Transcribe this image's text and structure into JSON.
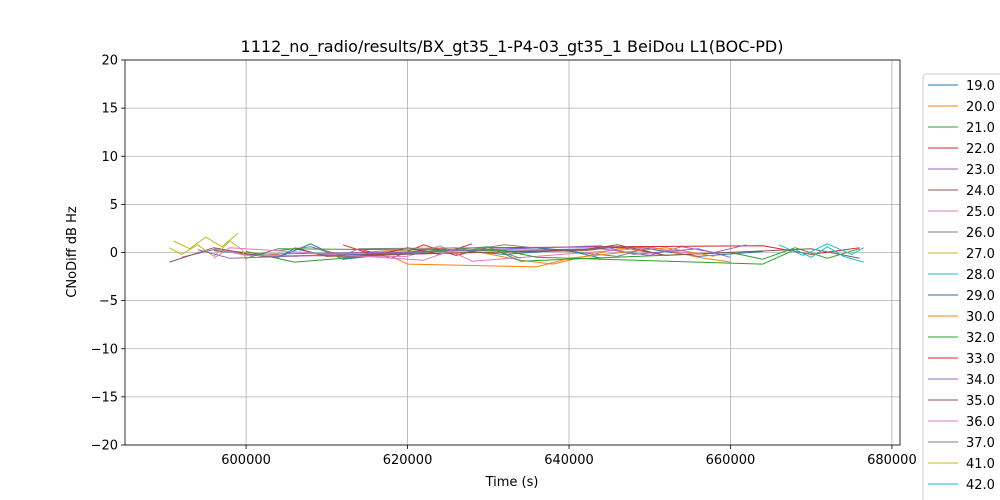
{
  "chart_data": {
    "type": "line",
    "title": "1112_no_radio/results/BX_gt35_1-P4-03_gt35_1 BeiDou L1(BOC-PD)",
    "xlabel": "Time (s)",
    "ylabel": "CNoDiff dB Hz",
    "xlim": [
      585000,
      681000
    ],
    "ylim": [
      -20,
      20
    ],
    "x_ticks": [
      600000,
      620000,
      640000,
      660000,
      680000
    ],
    "x_tick_labels": [
      "600000",
      "620000",
      "640000",
      "660000",
      "680000"
    ],
    "y_ticks": [
      20,
      15,
      10,
      5,
      0,
      -5,
      -10,
      -15,
      -20
    ],
    "y_tick_labels": [
      "20",
      "15",
      "10",
      "5",
      "0",
      "−5",
      "−10",
      "−15",
      "−20"
    ],
    "grid": true,
    "legend_placement": "right, outside plot",
    "series": [
      {
        "name": "19.0",
        "color": "#1f77b4",
        "x": [
          596000,
          604000,
          608000,
          612000,
          624000,
          632000,
          640000,
          648000,
          656000,
          664000
        ],
        "y": [
          0.2,
          -0.5,
          0.9,
          -0.7,
          0.4,
          -0.2,
          0.3,
          0.6,
          -0.4,
          0.1
        ]
      },
      {
        "name": "20.0",
        "color": "#ff7f0e",
        "x": [
          596000,
          606000,
          616000,
          626000,
          634000,
          638000,
          646000,
          650000,
          656000,
          660000
        ],
        "y": [
          0.3,
          -0.4,
          0.1,
          0.5,
          -0.8,
          -1.2,
          0.4,
          0.6,
          -0.5,
          -1.0
        ]
      },
      {
        "name": "21.0",
        "color": "#2ca02c",
        "x": [
          600000,
          606000,
          630000,
          634000,
          660000,
          664000,
          668000,
          672000,
          676000
        ],
        "y": [
          0.1,
          -1.0,
          0.6,
          -0.9,
          0.0,
          -0.7,
          0.5,
          -0.6,
          0.4
        ]
      },
      {
        "name": "22.0",
        "color": "#d62728",
        "x": [
          614000,
          618000,
          622000,
          626000,
          630000,
          664000,
          670000,
          676000
        ],
        "y": [
          0.4,
          -0.6,
          0.8,
          -0.3,
          0.5,
          0.7,
          -0.2,
          0.5
        ]
      },
      {
        "name": "23.0",
        "color": "#9467bd",
        "x": [
          592000,
          596000,
          600000,
          644000,
          650000,
          654000,
          658000,
          662000
        ],
        "y": [
          -0.5,
          0.3,
          -0.2,
          0.4,
          -0.3,
          0.6,
          0.0,
          0.8
        ]
      },
      {
        "name": "24.0",
        "color": "#8c564b",
        "x": [
          590500,
          596000,
          602000,
          642000,
          646000,
          652000,
          670000,
          676000
        ],
        "y": [
          -1.0,
          0.5,
          -0.4,
          0.2,
          0.6,
          -0.3,
          0.4,
          -0.6
        ]
      },
      {
        "name": "25.0",
        "color": "#e377c2",
        "x": [
          596000,
          600000,
          620000,
          624000,
          628000,
          650000,
          656000
        ],
        "y": [
          0.4,
          -0.3,
          -0.4,
          0.7,
          -0.9,
          0.5,
          -0.2
        ]
      },
      {
        "name": "26.0",
        "color": "#7f7f7f",
        "x": [
          604000,
          608000,
          612000,
          628000,
          632000,
          646000,
          650000
        ],
        "y": [
          0.2,
          0.6,
          -0.5,
          0.3,
          0.8,
          -0.4,
          0.5
        ]
      },
      {
        "name": "27.0",
        "color": "#bcbd22",
        "x": [
          590500,
          592000,
          594000,
          596000,
          598000,
          599500,
          600000
        ],
        "y": [
          0.5,
          -0.2,
          0.8,
          -0.4,
          1.2,
          0.3,
          -0.8
        ]
      },
      {
        "name": "28.0",
        "color": "#17becf",
        "x": [
          668000,
          670000,
          672000,
          674000,
          676500
        ],
        "y": [
          0.3,
          -0.5,
          0.6,
          -0.4,
          -1.0
        ]
      },
      {
        "name": "29.0",
        "color": "#1f77b4",
        "x": [
          604000,
          606000,
          610000,
          636000,
          640000,
          644000
        ],
        "y": [
          -0.5,
          0.4,
          -0.3,
          0.5,
          0.2,
          -0.6
        ]
      },
      {
        "name": "30.0",
        "color": "#ff7f0e",
        "x": [
          618000,
          620000,
          636000,
          640000,
          652000,
          658000
        ],
        "y": [
          -0.4,
          -1.2,
          -1.5,
          -0.6,
          0.5,
          -0.4
        ]
      },
      {
        "name": "32.0",
        "color": "#2ca02c",
        "x": [
          600000,
          604000,
          632000,
          636000,
          664000,
          668000
        ],
        "y": [
          -0.6,
          0.4,
          0.2,
          -0.5,
          -1.2,
          0.3
        ]
      },
      {
        "name": "33.0",
        "color": "#d62728",
        "x": [
          612000,
          616000,
          620000,
          624000,
          628000
        ],
        "y": [
          0.8,
          -0.3,
          0.5,
          -0.2,
          0.9
        ]
      },
      {
        "name": "34.0",
        "color": "#9467bd",
        "x": [
          594000,
          598000,
          644000,
          648000,
          656000,
          660000
        ],
        "y": [
          0.3,
          -0.6,
          0.7,
          -0.2,
          0.4,
          -0.5
        ]
      },
      {
        "name": "35.0",
        "color": "#8c564b",
        "x": [
          606000,
          610000,
          642000,
          646000,
          652000
        ],
        "y": [
          0.5,
          -0.4,
          0.3,
          0.8,
          -0.3
        ]
      },
      {
        "name": "36.0",
        "color": "#e377c2",
        "x": [
          596000,
          598000,
          622000,
          626000
        ],
        "y": [
          -0.6,
          0.5,
          -0.8,
          0.4
        ]
      },
      {
        "name": "37.0",
        "color": "#7f7f7f",
        "x": [
          608000,
          612000,
          614000,
          630000,
          634000
        ],
        "y": [
          0.6,
          -0.3,
          0.4,
          0.5,
          -0.6
        ]
      },
      {
        "name": "41.0",
        "color": "#bcbd22",
        "x": [
          591000,
          593000,
          595000,
          597000,
          599000
        ],
        "y": [
          1.2,
          0.4,
          1.6,
          0.6,
          2.0
        ]
      },
      {
        "name": "42.0",
        "color": "#17becf",
        "x": [
          666000,
          669000,
          672000,
          675000,
          676500
        ],
        "y": [
          0.8,
          -0.3,
          0.9,
          -0.2,
          0.5
        ]
      }
    ]
  }
}
